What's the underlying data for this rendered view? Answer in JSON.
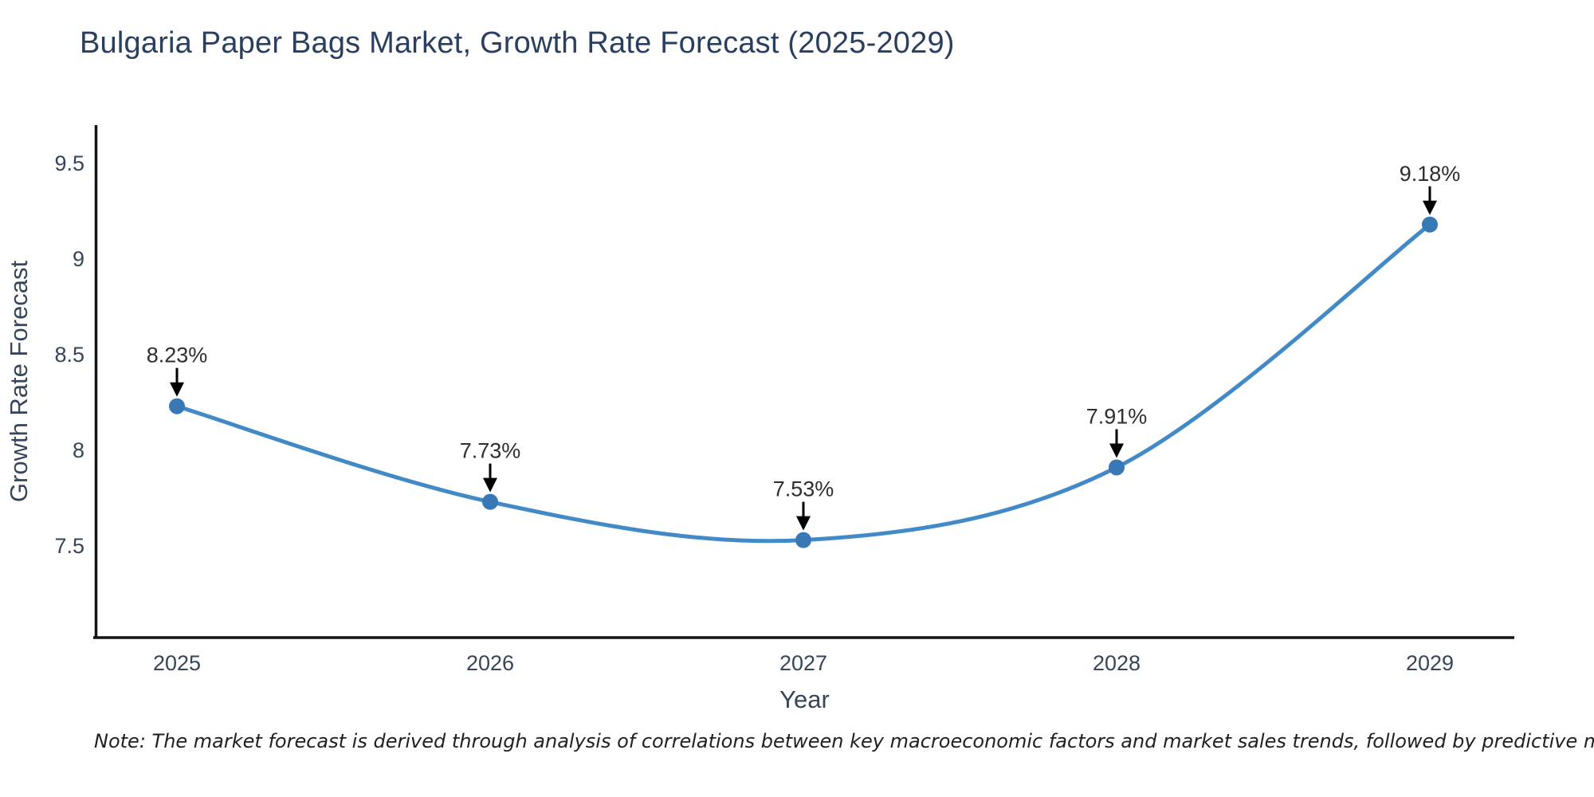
{
  "page": {
    "title": "Bulgaria Paper Bags Market, Growth Rate Forecast (2025-2029)",
    "note": "Note: The market forecast is derived through analysis of correlations between key macroeconomic factors and market sales trends, followed by predictive modeling to project future sales"
  },
  "chart_data": {
    "type": "line",
    "title": "Bulgaria Paper Bags Market, Growth Rate Forecast (2025-2029)",
    "x": [
      2025,
      2026,
      2027,
      2028,
      2029
    ],
    "series": [
      {
        "name": "Growth Rate Forecast",
        "values": [
          8.23,
          7.73,
          7.53,
          7.91,
          9.18
        ]
      }
    ],
    "point_labels": [
      "8.23%",
      "7.73%",
      "7.53%",
      "7.91%",
      "9.18%"
    ],
    "xlabel": "Year",
    "ylabel": "Growth Rate Forecast",
    "yticks": [
      7.5,
      8,
      8.5,
      9,
      9.5
    ],
    "ylim": [
      7.02,
      9.7
    ],
    "line_shape": "spline",
    "grid": false,
    "legend_position": "none",
    "colors": {
      "line": "#4289c7",
      "marker": "#3879b5",
      "axis": "#111418",
      "title": "#2a3f5f",
      "ticks": "#36455a",
      "annotation_text": "#2e2e2e",
      "arrow": "#000000"
    }
  }
}
